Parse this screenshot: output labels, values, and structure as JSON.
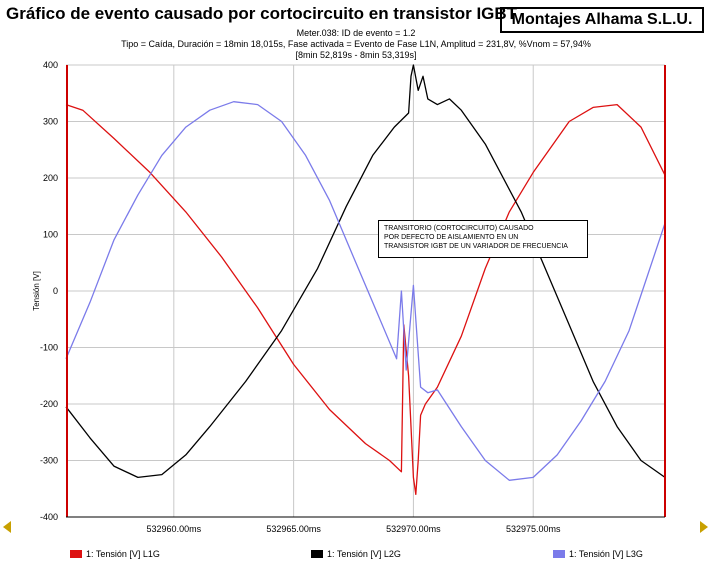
{
  "header": {
    "title": "Gráfico de evento causado por cortocircuito en transistor IGBT",
    "company": "Montajes Alhama S.L.U.",
    "line1": "Meter.038: ID de evento = 1.2",
    "line2": "Tipo = Caída, Duración = 18min 18,015s, Fase activada = Evento de Fase L1N, Amplitud = 231,8V, %Vnom = 57,94%",
    "line3": "[8min 52,819s - 8min 53,319s]"
  },
  "annotation": {
    "line1": "TRANSITORIO (CORTOCIRCUITO) CAUSADO",
    "line2": "POR DEFECTO DE AISLAMIENTO EN UN",
    "line3": "TRANSISTOR IGBT DE UN VARIADOR DE FRECUENCIA"
  },
  "legend": {
    "l1": "1: Tensión [V] L1G",
    "l2": "1: Tensión [V] L2G",
    "l3": "1: Tensión [V] L3G"
  },
  "colors": {
    "L1": "#dd1111",
    "L2": "#000000",
    "L3": "#7b7bea",
    "axis": "#cc0000",
    "grid": "#c8c8c8",
    "nav": "#c8a000"
  },
  "chart_data": {
    "type": "line",
    "title": "Gráfico de evento causado por cortocircuito en transistor IGBT",
    "xlabel": "",
    "ylabel": "Tensión [V]",
    "xlim": [
      532955.5,
      532980.5
    ],
    "ylim": [
      -400,
      400
    ],
    "y_ticks": [
      400,
      300,
      200,
      100,
      0,
      -100,
      -200,
      -300,
      -400
    ],
    "y_tick_labels": [
      "400",
      "300",
      "200",
      "100",
      "0",
      "-100",
      "-200",
      "-300",
      "-400"
    ],
    "x_ticks": [
      532960,
      532965,
      532970,
      532975
    ],
    "x_tick_labels": [
      "532960.00ms",
      "532965.00ms",
      "532970.00ms",
      "532975.00ms"
    ],
    "grid": true,
    "legend_position": "bottom",
    "series": [
      {
        "name": "1: Tensión [V] L1G",
        "color": "#dd1111",
        "points": [
          [
            532955.5,
            330
          ],
          [
            532956.2,
            320
          ],
          [
            532957.5,
            270
          ],
          [
            532959,
            210
          ],
          [
            532960.5,
            140
          ],
          [
            532962,
            60
          ],
          [
            532963.5,
            -30
          ],
          [
            532965,
            -130
          ],
          [
            532966.5,
            -210
          ],
          [
            532968,
            -270
          ],
          [
            532969,
            -300
          ],
          [
            532969.5,
            -320
          ],
          [
            532969.6,
            -60
          ],
          [
            532969.8,
            -150
          ],
          [
            532970,
            -330
          ],
          [
            532970.1,
            -360
          ],
          [
            532970.2,
            -300
          ],
          [
            532970.3,
            -220
          ],
          [
            532970.5,
            -200
          ],
          [
            532971,
            -170
          ],
          [
            532972,
            -80
          ],
          [
            532973,
            40
          ],
          [
            532974,
            140
          ],
          [
            532975,
            210
          ],
          [
            532976.5,
            300
          ],
          [
            532977.5,
            325
          ],
          [
            532978.5,
            330
          ],
          [
            532979.5,
            290
          ],
          [
            532980.5,
            205
          ]
        ]
      },
      {
        "name": "1: Tensión [V] L2G",
        "color": "#000000",
        "points": [
          [
            532955.5,
            -205
          ],
          [
            532956.5,
            -260
          ],
          [
            532957.5,
            -310
          ],
          [
            532958.5,
            -330
          ],
          [
            532959.5,
            -325
          ],
          [
            532960.5,
            -290
          ],
          [
            532961.5,
            -240
          ],
          [
            532963,
            -160
          ],
          [
            532964.5,
            -70
          ],
          [
            532966,
            40
          ],
          [
            532967.2,
            150
          ],
          [
            532968.3,
            240
          ],
          [
            532969.2,
            290
          ],
          [
            532969.8,
            315
          ],
          [
            532969.9,
            380
          ],
          [
            532970.0,
            400
          ],
          [
            532970.2,
            355
          ],
          [
            532970.4,
            380
          ],
          [
            532970.6,
            340
          ],
          [
            532971,
            330
          ],
          [
            532971.5,
            340
          ],
          [
            532972,
            320
          ],
          [
            532973,
            260
          ],
          [
            532974.5,
            140
          ],
          [
            532975.5,
            40
          ],
          [
            532976.5,
            -60
          ],
          [
            532977.5,
            -160
          ],
          [
            532978.5,
            -240
          ],
          [
            532979.5,
            -300
          ],
          [
            532980.5,
            -330
          ]
        ]
      },
      {
        "name": "1: Tensión [V] L3G",
        "color": "#7b7bea",
        "points": [
          [
            532955.5,
            -120
          ],
          [
            532956.5,
            -20
          ],
          [
            532957.5,
            90
          ],
          [
            532958.5,
            170
          ],
          [
            532959.5,
            240
          ],
          [
            532960.5,
            290
          ],
          [
            532961.5,
            320
          ],
          [
            532962.5,
            335
          ],
          [
            532963.5,
            330
          ],
          [
            532964.5,
            300
          ],
          [
            532965.5,
            240
          ],
          [
            532966.5,
            160
          ],
          [
            532967.5,
            60
          ],
          [
            532968.5,
            -40
          ],
          [
            532969.3,
            -120
          ],
          [
            532969.5,
            0
          ],
          [
            532969.7,
            -140
          ],
          [
            532970.0,
            10
          ],
          [
            532970.3,
            -170
          ],
          [
            532970.6,
            -180
          ],
          [
            532971,
            -175
          ],
          [
            532972,
            -240
          ],
          [
            532973,
            -300
          ],
          [
            532974,
            -335
          ],
          [
            532975,
            -330
          ],
          [
            532976,
            -290
          ],
          [
            532977,
            -230
          ],
          [
            532978,
            -160
          ],
          [
            532979,
            -70
          ],
          [
            532980.5,
            120
          ]
        ]
      }
    ]
  }
}
